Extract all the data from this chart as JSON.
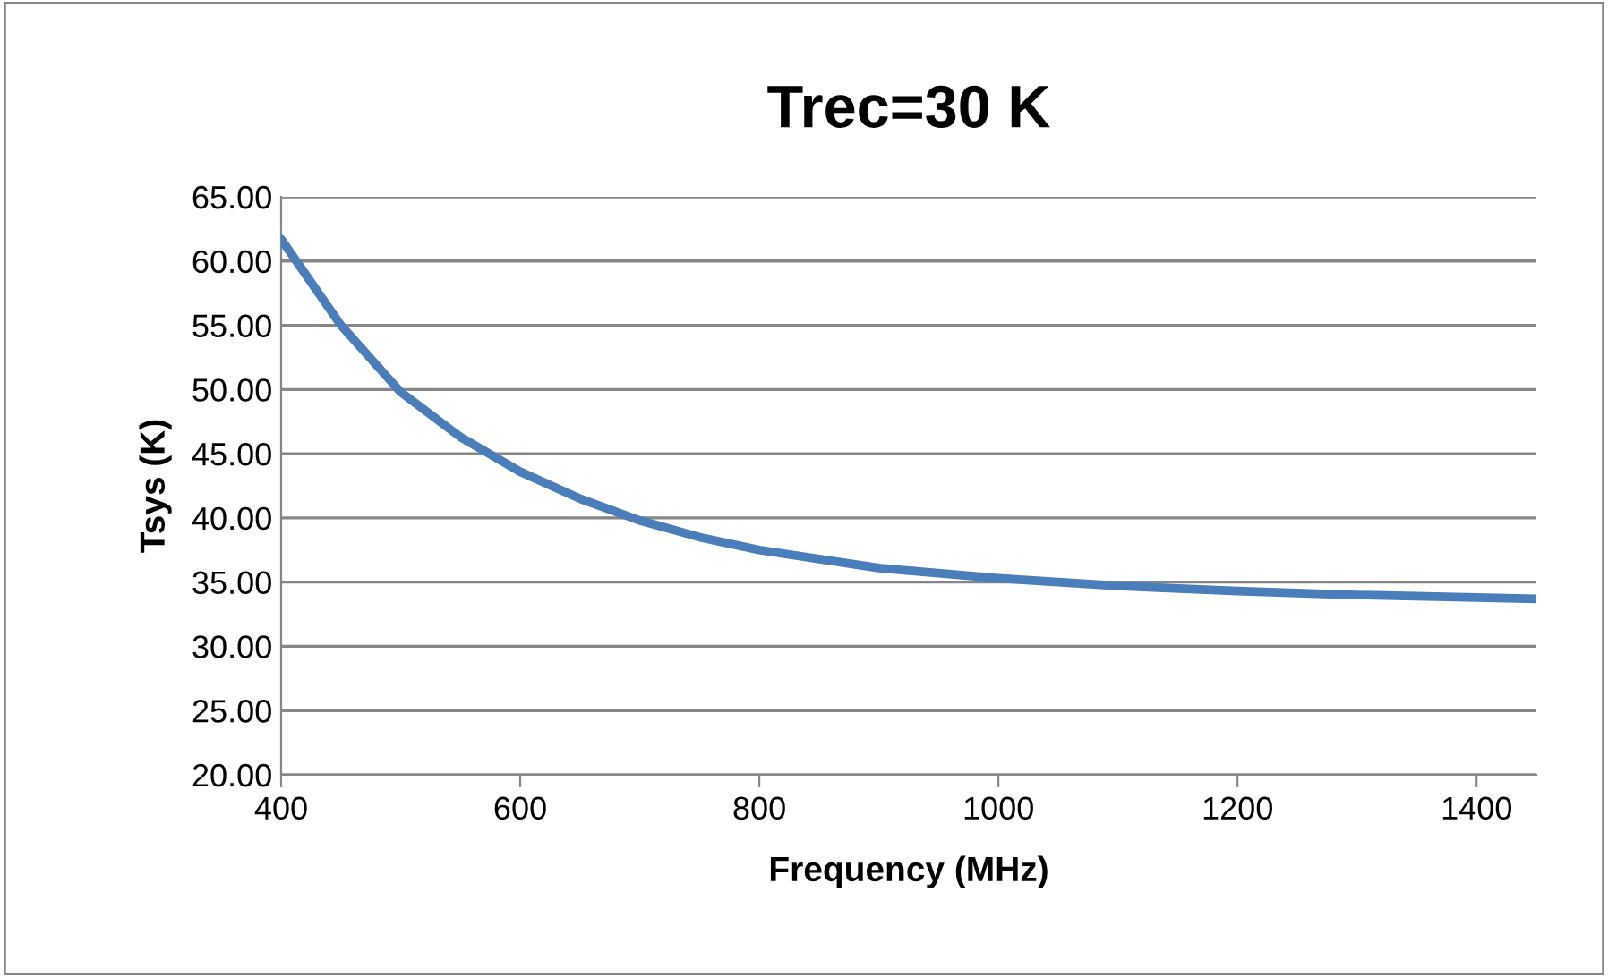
{
  "chart_data": {
    "type": "line",
    "title": "Trec=30 K",
    "xlabel": "Frequency (MHz)",
    "ylabel": "Tsys (K)",
    "series": [
      {
        "color": "#4a7ebb",
        "x": [
          400,
          450,
          500,
          550,
          600,
          650,
          700,
          750,
          800,
          900,
          1000,
          1100,
          1200,
          1300,
          1400,
          1450
        ],
        "values": [
          61.7,
          55.0,
          49.8,
          46.3,
          43.6,
          41.5,
          39.8,
          38.5,
          37.5,
          36.1,
          35.3,
          34.7,
          34.3,
          34.0,
          33.8,
          33.7
        ]
      }
    ],
    "xlim": [
      400,
      1450
    ],
    "xticks": [
      400,
      600,
      800,
      1000,
      1200,
      1400
    ],
    "ylim": [
      20,
      65
    ],
    "yticks": [
      {
        "value": 20,
        "label": "20.00"
      },
      {
        "value": 25,
        "label": "25.00"
      },
      {
        "value": 30,
        "label": "30.00"
      },
      {
        "value": 35,
        "label": "35.00"
      },
      {
        "value": 40,
        "label": "40.00"
      },
      {
        "value": 45,
        "label": "45.00"
      },
      {
        "value": 50,
        "label": "50.00"
      },
      {
        "value": 55,
        "label": "55.00"
      },
      {
        "value": 60,
        "label": "60.00"
      },
      {
        "value": 65,
        "label": "65.00"
      }
    ],
    "grid": "y",
    "marker": "none",
    "line_style": "solid"
  }
}
